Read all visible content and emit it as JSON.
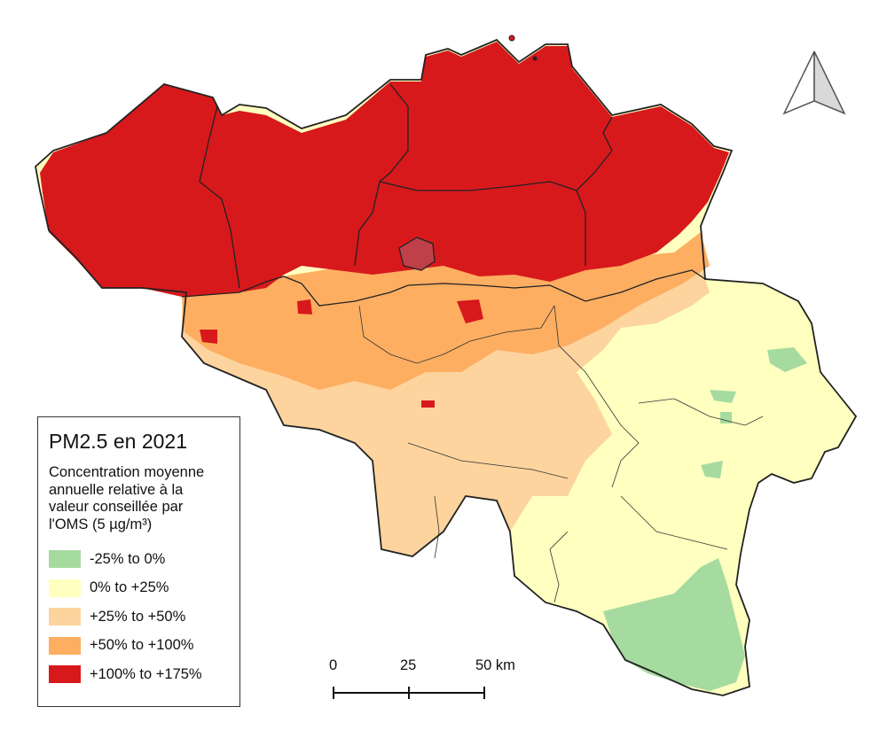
{
  "legend": {
    "title": "PM2.5 en 2021",
    "subtitle_lines": [
      "Concentration moyenne",
      "annuelle relative à la",
      "valeur conseillée par",
      "l'OMS (5 µg/m³)"
    ],
    "items": [
      {
        "label": "-25% to 0%",
        "color": "#a6dba0"
      },
      {
        "label": "0% to +25%",
        "color": "#ffffbf"
      },
      {
        "label": "+25% to +50%",
        "color": "#fdd49e"
      },
      {
        "label": "+50% to +100%",
        "color": "#fdae61"
      },
      {
        "label": "+100% to +175%",
        "color": "#d7191c"
      }
    ]
  },
  "scale_bar": {
    "labels": [
      "0",
      "25",
      "50 km"
    ]
  },
  "north_arrow": {
    "icon": "north-arrow-icon"
  },
  "colors": {
    "border": "#222222",
    "high": "#d7191c",
    "medium_high": "#fdae61",
    "medium": "#fdd49e",
    "low": "#ffffbf",
    "below": "#a6dba0"
  }
}
